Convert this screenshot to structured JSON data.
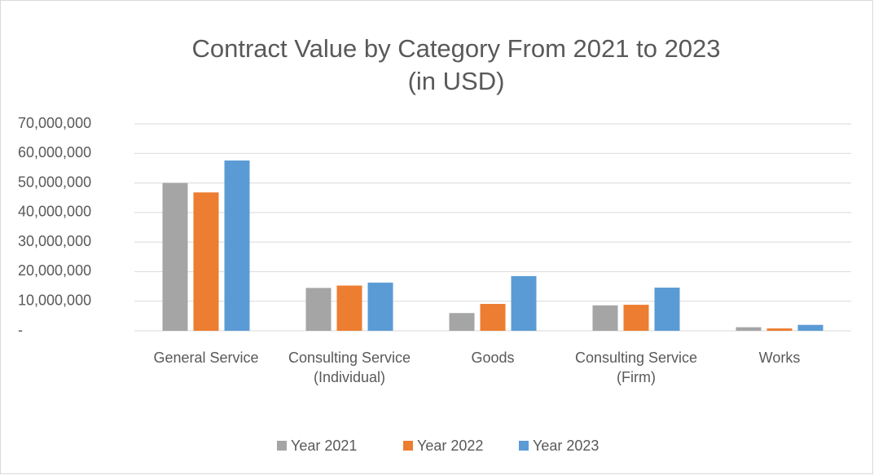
{
  "chart_data": {
    "type": "bar",
    "title": "Contract Value by Category From 2021 to 2023",
    "subtitle": "(in USD)",
    "categories": [
      "General Service",
      "Consulting Service (Individual)",
      "Goods",
      "Consulting Service (Firm)",
      "Works"
    ],
    "series": [
      {
        "name": "Year 2021",
        "color": "#a5a5a5",
        "values": [
          50000000,
          14500000,
          6000000,
          8600000,
          1200000
        ]
      },
      {
        "name": "Year 2022",
        "color": "#ed7d31",
        "values": [
          46800000,
          15300000,
          9100000,
          8800000,
          800000
        ]
      },
      {
        "name": "Year 2023",
        "color": "#5b9bd5",
        "values": [
          57600000,
          16300000,
          18500000,
          14600000,
          2000000
        ]
      }
    ],
    "ylim": [
      0,
      70000000
    ],
    "yticks": [
      {
        "value": 0,
        "label": "-"
      },
      {
        "value": 10000000,
        "label": "10,000,000"
      },
      {
        "value": 20000000,
        "label": "20,000,000"
      },
      {
        "value": 30000000,
        "label": "30,000,000"
      },
      {
        "value": 40000000,
        "label": "40,000,000"
      },
      {
        "value": 50000000,
        "label": "50,000,000"
      },
      {
        "value": 60000000,
        "label": "60,000,000"
      },
      {
        "value": 70000000,
        "label": "70,000,000"
      }
    ],
    "grid": true,
    "legend": "bottom"
  }
}
